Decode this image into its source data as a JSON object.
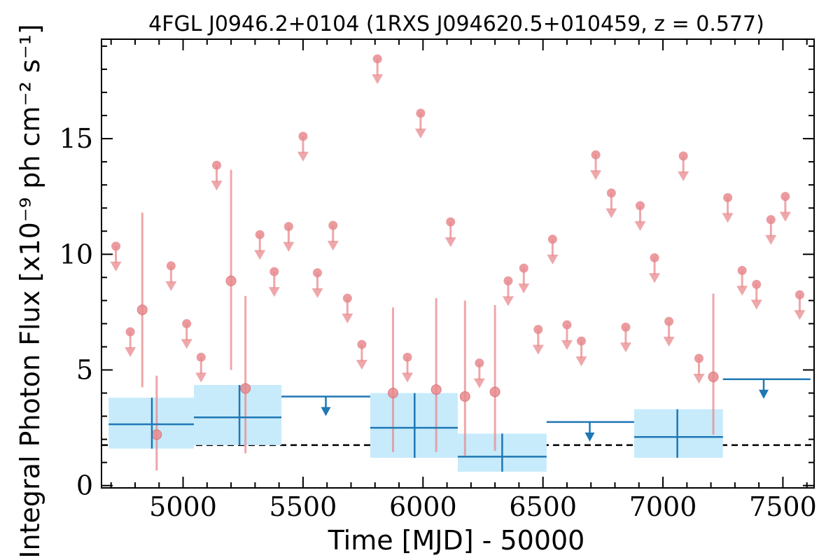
{
  "chart_data": {
    "type": "scatter",
    "title": "4FGL J0946.2+0104 (1RXS J094620.5+010459, z = 0.577)",
    "xlabel": "Time [MJD] - 50000",
    "ylabel": "Integral Photon Flux [x10⁻⁹ ph cm⁻² s⁻¹]",
    "xlim": [
      4660,
      7630
    ],
    "ylim": [
      -0.1,
      19.3
    ],
    "xticks": [
      5000,
      5500,
      6000,
      6500,
      7000,
      7500
    ],
    "xtick_labels": [
      "5000",
      "5500",
      "6000",
      "6500",
      "7000",
      "7500"
    ],
    "yticks": [
      0,
      5,
      10,
      15
    ],
    "ytick_labels": [
      "0",
      "5",
      "10",
      "15"
    ],
    "mean_flux_line": 1.75,
    "colors": {
      "short_bins": "#e88a8e",
      "long_bins": "#1f77b4",
      "long_band": "#c7ebfb",
      "mean_line": "#000000"
    },
    "series": [
      {
        "name": "short-bin detections",
        "points": [
          {
            "x": 4830,
            "y": 7.6,
            "ylow": 4.25,
            "yhigh": 11.8
          },
          {
            "x": 4890,
            "y": 2.2,
            "ylow": 0.65,
            "yhigh": 4.75
          },
          {
            "x": 5200,
            "y": 8.85,
            "ylow": 5.0,
            "yhigh": 13.65
          },
          {
            "x": 5260,
            "y": 4.2,
            "ylow": 1.4,
            "yhigh": 8.2
          },
          {
            "x": 5875,
            "y": 4.0,
            "ylow": 1.45,
            "yhigh": 7.7
          },
          {
            "x": 6055,
            "y": 4.15,
            "ylow": 1.45,
            "yhigh": 8.1
          },
          {
            "x": 6175,
            "y": 3.85,
            "ylow": 1.3,
            "yhigh": 8.0
          },
          {
            "x": 6300,
            "y": 4.05,
            "ylow": 1.5,
            "yhigh": 7.8
          },
          {
            "x": 7210,
            "y": 4.7,
            "ylow": 2.2,
            "yhigh": 8.3
          }
        ]
      },
      {
        "name": "short-bin upper limits",
        "points": [
          {
            "x": 4720,
            "y": 10.35
          },
          {
            "x": 4780,
            "y": 6.65
          },
          {
            "x": 4950,
            "y": 9.5
          },
          {
            "x": 5015,
            "y": 7.0
          },
          {
            "x": 5075,
            "y": 5.55
          },
          {
            "x": 5140,
            "y": 13.85
          },
          {
            "x": 5320,
            "y": 10.85
          },
          {
            "x": 5380,
            "y": 9.25
          },
          {
            "x": 5440,
            "y": 11.2
          },
          {
            "x": 5500,
            "y": 15.1
          },
          {
            "x": 5560,
            "y": 9.2
          },
          {
            "x": 5625,
            "y": 11.25
          },
          {
            "x": 5685,
            "y": 8.1
          },
          {
            "x": 5745,
            "y": 6.1
          },
          {
            "x": 5810,
            "y": 18.45
          },
          {
            "x": 5935,
            "y": 5.55
          },
          {
            "x": 5990,
            "y": 16.1
          },
          {
            "x": 6115,
            "y": 11.4
          },
          {
            "x": 6235,
            "y": 5.3
          },
          {
            "x": 6355,
            "y": 8.85
          },
          {
            "x": 6420,
            "y": 9.4
          },
          {
            "x": 6480,
            "y": 6.75
          },
          {
            "x": 6540,
            "y": 10.65
          },
          {
            "x": 6600,
            "y": 6.95
          },
          {
            "x": 6660,
            "y": 6.25
          },
          {
            "x": 6720,
            "y": 14.3
          },
          {
            "x": 6785,
            "y": 12.65
          },
          {
            "x": 6845,
            "y": 6.85
          },
          {
            "x": 6905,
            "y": 12.1
          },
          {
            "x": 6965,
            "y": 9.85
          },
          {
            "x": 7025,
            "y": 7.1
          },
          {
            "x": 7085,
            "y": 14.25
          },
          {
            "x": 7150,
            "y": 5.5
          },
          {
            "x": 7270,
            "y": 12.45
          },
          {
            "x": 7330,
            "y": 9.3
          },
          {
            "x": 7390,
            "y": 8.7
          },
          {
            "x": 7450,
            "y": 11.5
          },
          {
            "x": 7510,
            "y": 12.5
          },
          {
            "x": 7570,
            "y": 8.25
          }
        ]
      },
      {
        "name": "long-bin detections",
        "bins": [
          {
            "x0": 4690,
            "x1": 5045,
            "xc": 4870,
            "y": 2.65,
            "ylow": 1.6,
            "yhigh": 3.8
          },
          {
            "x0": 5045,
            "x1": 5410,
            "xc": 5235,
            "y": 2.95,
            "ylow": 1.75,
            "yhigh": 4.35
          },
          {
            "x0": 5780,
            "x1": 6145,
            "xc": 5965,
            "y": 2.5,
            "ylow": 1.2,
            "yhigh": 4.0
          },
          {
            "x0": 6145,
            "x1": 6515,
            "xc": 6330,
            "y": 1.25,
            "ylow": 0.6,
            "yhigh": 2.25
          },
          {
            "x0": 6880,
            "x1": 7250,
            "xc": 7060,
            "y": 2.1,
            "ylow": 1.2,
            "yhigh": 3.3
          }
        ]
      },
      {
        "name": "long-bin upper limits",
        "bins": [
          {
            "x0": 5410,
            "x1": 5780,
            "xc": 5595,
            "y": 3.85
          },
          {
            "x0": 6515,
            "x1": 6880,
            "xc": 6695,
            "y": 2.75
          },
          {
            "x0": 7250,
            "x1": 7615,
            "xc": 7420,
            "y": 4.6
          }
        ]
      }
    ]
  }
}
